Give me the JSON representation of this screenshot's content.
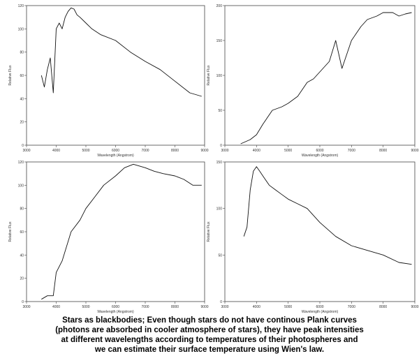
{
  "caption": [
    "Stars as blackbodies; Even though stars do not have continous Plank curves",
    "(photons are absorbed in cooler atmosphere of stars), they have peak intensities",
    "at different wavelengths according to temperatures of their photospheres and",
    "we can estimate their surface temperature using Wien's law."
  ],
  "chart_data": [
    {
      "type": "line",
      "xlabel": "Wavelength (Angstrom)",
      "ylabel": "Relative Flux",
      "xlim": [
        3000,
        9000
      ],
      "ylim": [
        0,
        120
      ],
      "xticks": [
        "3000",
        "4000",
        "5000",
        "6000",
        "7000",
        "8000",
        "9000"
      ],
      "yticks": [
        "0",
        "20",
        "40",
        "60",
        "80",
        "100",
        "120"
      ],
      "series": [
        {
          "x": [
            3500,
            3600,
            3700,
            3800,
            3900,
            4000,
            4100,
            4200,
            4300,
            4400,
            4500,
            4600,
            4700,
            4800,
            5000,
            5200,
            5500,
            6000,
            6500,
            7000,
            7500,
            8000,
            8500,
            8900
          ],
          "y": [
            60,
            50,
            65,
            75,
            45,
            100,
            105,
            100,
            110,
            115,
            118,
            117,
            112,
            110,
            105,
            100,
            95,
            90,
            80,
            72,
            65,
            55,
            45,
            42
          ]
        }
      ]
    },
    {
      "type": "line",
      "xlabel": "Wavelength (Angstrom)",
      "ylabel": "Relative Flux",
      "xlim": [
        3000,
        9000
      ],
      "ylim": [
        0,
        200
      ],
      "xticks": [
        "3000",
        "4000",
        "5000",
        "6000",
        "7000",
        "8000",
        "9000"
      ],
      "yticks": [
        "0",
        "50",
        "100",
        "150",
        "200"
      ],
      "series": [
        {
          "x": [
            3500,
            3800,
            4000,
            4200,
            4500,
            4800,
            5000,
            5300,
            5600,
            5800,
            6000,
            6300,
            6500,
            6700,
            7000,
            7300,
            7500,
            7800,
            8000,
            8300,
            8500,
            8700,
            8900
          ],
          "y": [
            2,
            8,
            15,
            30,
            50,
            55,
            60,
            70,
            90,
            95,
            105,
            120,
            150,
            110,
            150,
            170,
            180,
            185,
            190,
            190,
            185,
            188,
            190
          ]
        }
      ]
    },
    {
      "type": "line",
      "xlabel": "Wavelength (Angstrom)",
      "ylabel": "Relative Flux",
      "xlim": [
        3000,
        9000
      ],
      "ylim": [
        0,
        120
      ],
      "xticks": [
        "3000",
        "4000",
        "5000",
        "6000",
        "7000",
        "8000",
        "9000"
      ],
      "yticks": [
        "0",
        "20",
        "40",
        "60",
        "80",
        "100",
        "120"
      ],
      "series": [
        {
          "x": [
            3500,
            3700,
            3900,
            4000,
            4200,
            4500,
            4800,
            5000,
            5300,
            5600,
            6000,
            6300,
            6600,
            7000,
            7300,
            7600,
            8000,
            8300,
            8600,
            8900
          ],
          "y": [
            2,
            5,
            5,
            25,
            35,
            60,
            70,
            80,
            90,
            100,
            108,
            115,
            118,
            115,
            112,
            110,
            108,
            105,
            100,
            100
          ]
        }
      ]
    },
    {
      "type": "line",
      "xlabel": "Wavelength (Angstrom)",
      "ylabel": "Relative Flux",
      "xlim": [
        3000,
        9000
      ],
      "ylim": [
        0,
        150
      ],
      "xticks": [
        "3000",
        "4000",
        "5000",
        "6000",
        "7000",
        "8000",
        "9000"
      ],
      "yticks": [
        "0",
        "50",
        "100",
        "150"
      ],
      "series": [
        {
          "x": [
            3600,
            3700,
            3800,
            3900,
            4000,
            4100,
            4200,
            4400,
            4600,
            4800,
            5000,
            5300,
            5600,
            6000,
            6500,
            7000,
            7500,
            8000,
            8500,
            8900
          ],
          "y": [
            70,
            80,
            120,
            140,
            145,
            140,
            135,
            125,
            120,
            115,
            110,
            105,
            100,
            85,
            70,
            60,
            55,
            50,
            42,
            40
          ]
        }
      ]
    }
  ]
}
